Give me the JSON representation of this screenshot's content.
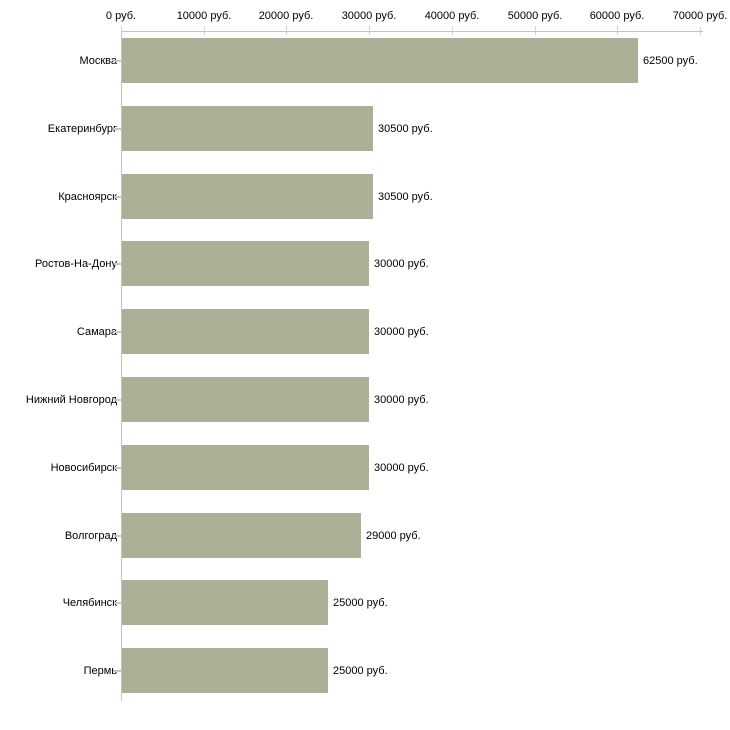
{
  "chart_data": {
    "type": "bar",
    "orientation": "horizontal",
    "title": "",
    "categories": [
      "Москва",
      "Екатеринбург",
      "Красноярск",
      "Ростов-На-Дону",
      "Самара",
      "Нижний Новгород",
      "Новосибирск",
      "Волгоград",
      "Челябинск",
      "Пермь"
    ],
    "values": [
      62500,
      30500,
      30500,
      30000,
      30000,
      30000,
      30000,
      29000,
      25000,
      25000
    ],
    "value_labels": [
      "62500 руб.",
      "30500 руб.",
      "30500 руб.",
      "30000 руб.",
      "30000 руб.",
      "30000 руб.",
      "30000 руб.",
      "29000 руб.",
      "25000 руб.",
      "25000 руб."
    ],
    "x_axis": {
      "position": "top",
      "min": 0,
      "max": 70000,
      "tick_interval": 10000,
      "tick_labels": [
        "0 руб.",
        "10000 руб.",
        "20000 руб.",
        "30000 руб.",
        "40000 руб.",
        "50000 руб.",
        "60000 руб.",
        "70000 руб."
      ]
    },
    "ylabel": "",
    "xlabel": "",
    "grid": false,
    "legend": false,
    "colors": {
      "bar": "#aab197",
      "axis_line": "#c3c3c3",
      "tick_mark": "#dcd8b4",
      "category_tick": "#cfcba8",
      "text": "#000000",
      "background": "#ffffff"
    }
  }
}
